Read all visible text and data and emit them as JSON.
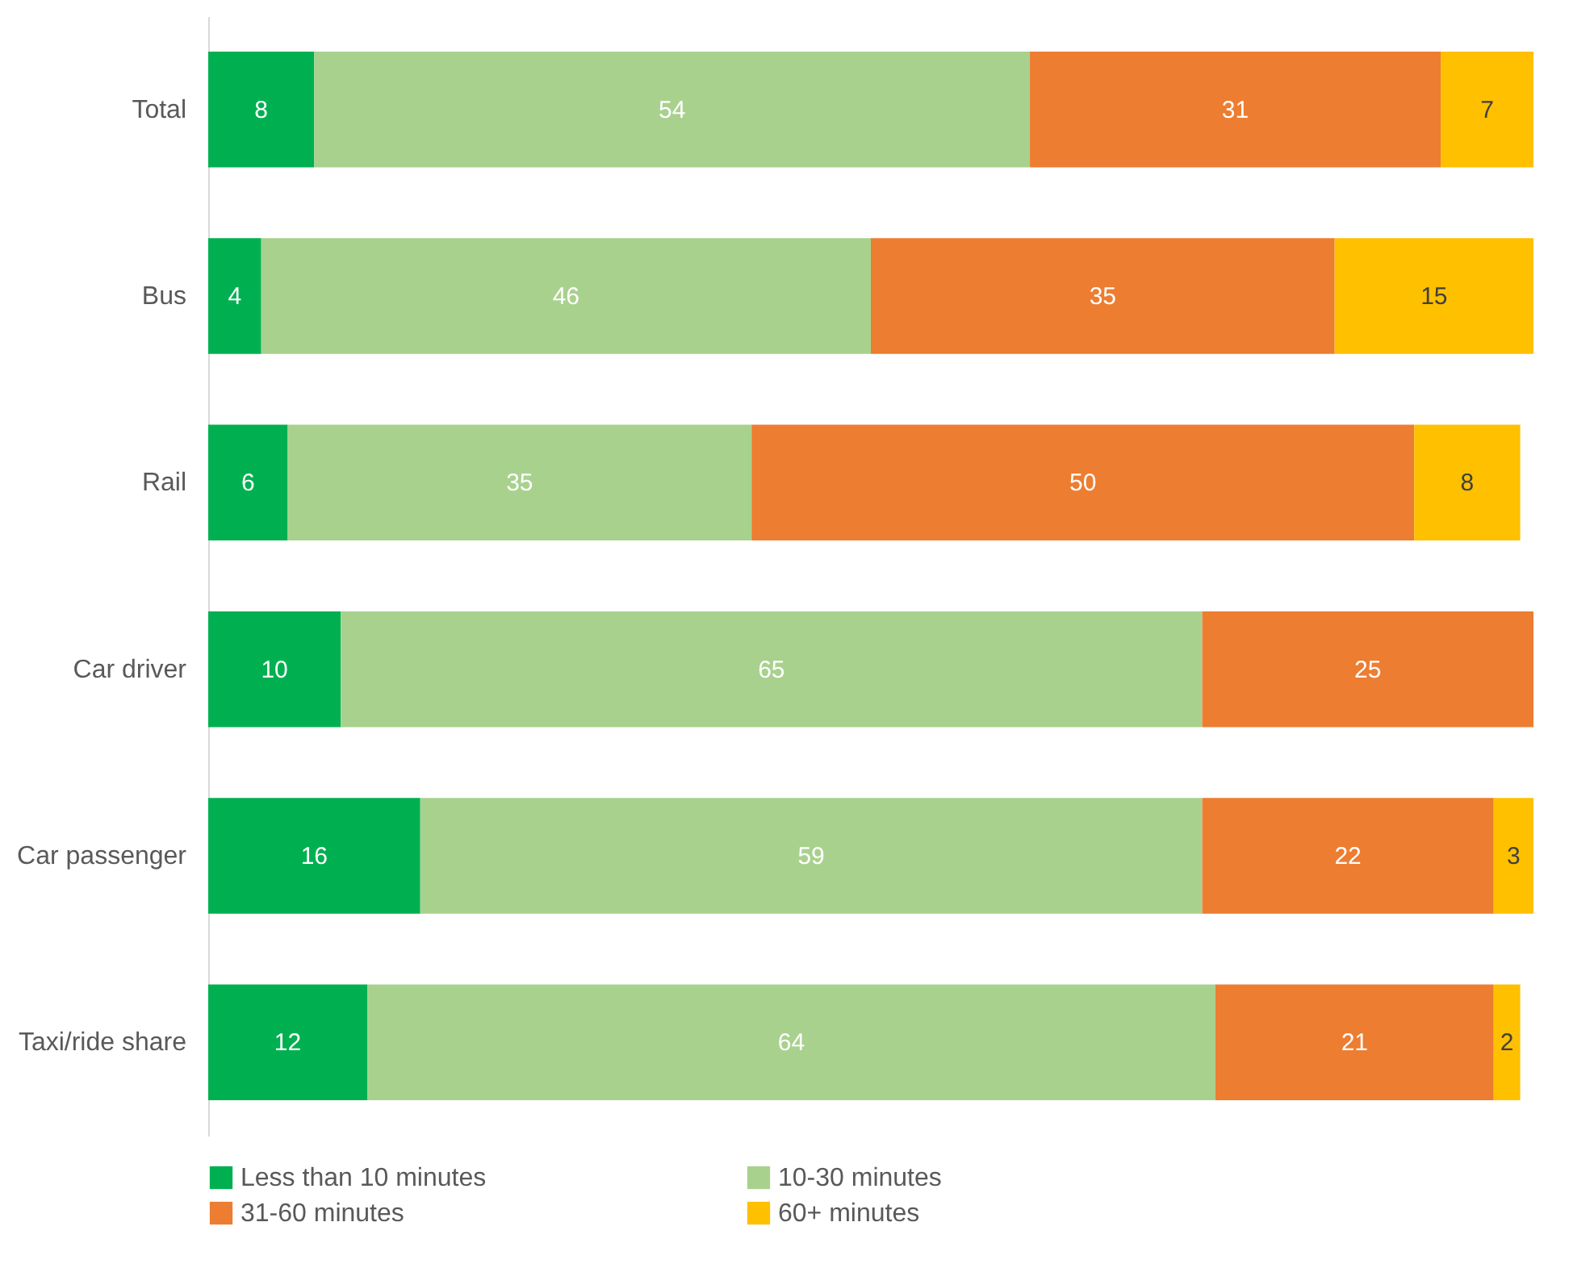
{
  "chart_data": {
    "type": "bar",
    "orientation": "horizontal",
    "stacked": true,
    "data_labels": true,
    "legend": "bottom",
    "categories": [
      "Total",
      "Bus",
      "Rail",
      "Car driver",
      "Car passenger",
      "Taxi/ride share"
    ],
    "series": [
      {
        "name": "Less than 10 minutes",
        "color": "#00b050",
        "values": [
          8,
          4,
          6,
          10,
          16,
          12
        ]
      },
      {
        "name": "10-30 minutes",
        "color": "#a9d18e",
        "values": [
          54,
          46,
          35,
          65,
          59,
          64
        ]
      },
      {
        "name": "31-60 minutes",
        "color": "#ed7d31",
        "values": [
          31,
          35,
          50,
          25,
          22,
          21
        ]
      },
      {
        "name": "60+ minutes",
        "color": "#ffc000",
        "values": [
          7,
          15,
          8,
          null,
          3,
          2
        ]
      }
    ]
  }
}
